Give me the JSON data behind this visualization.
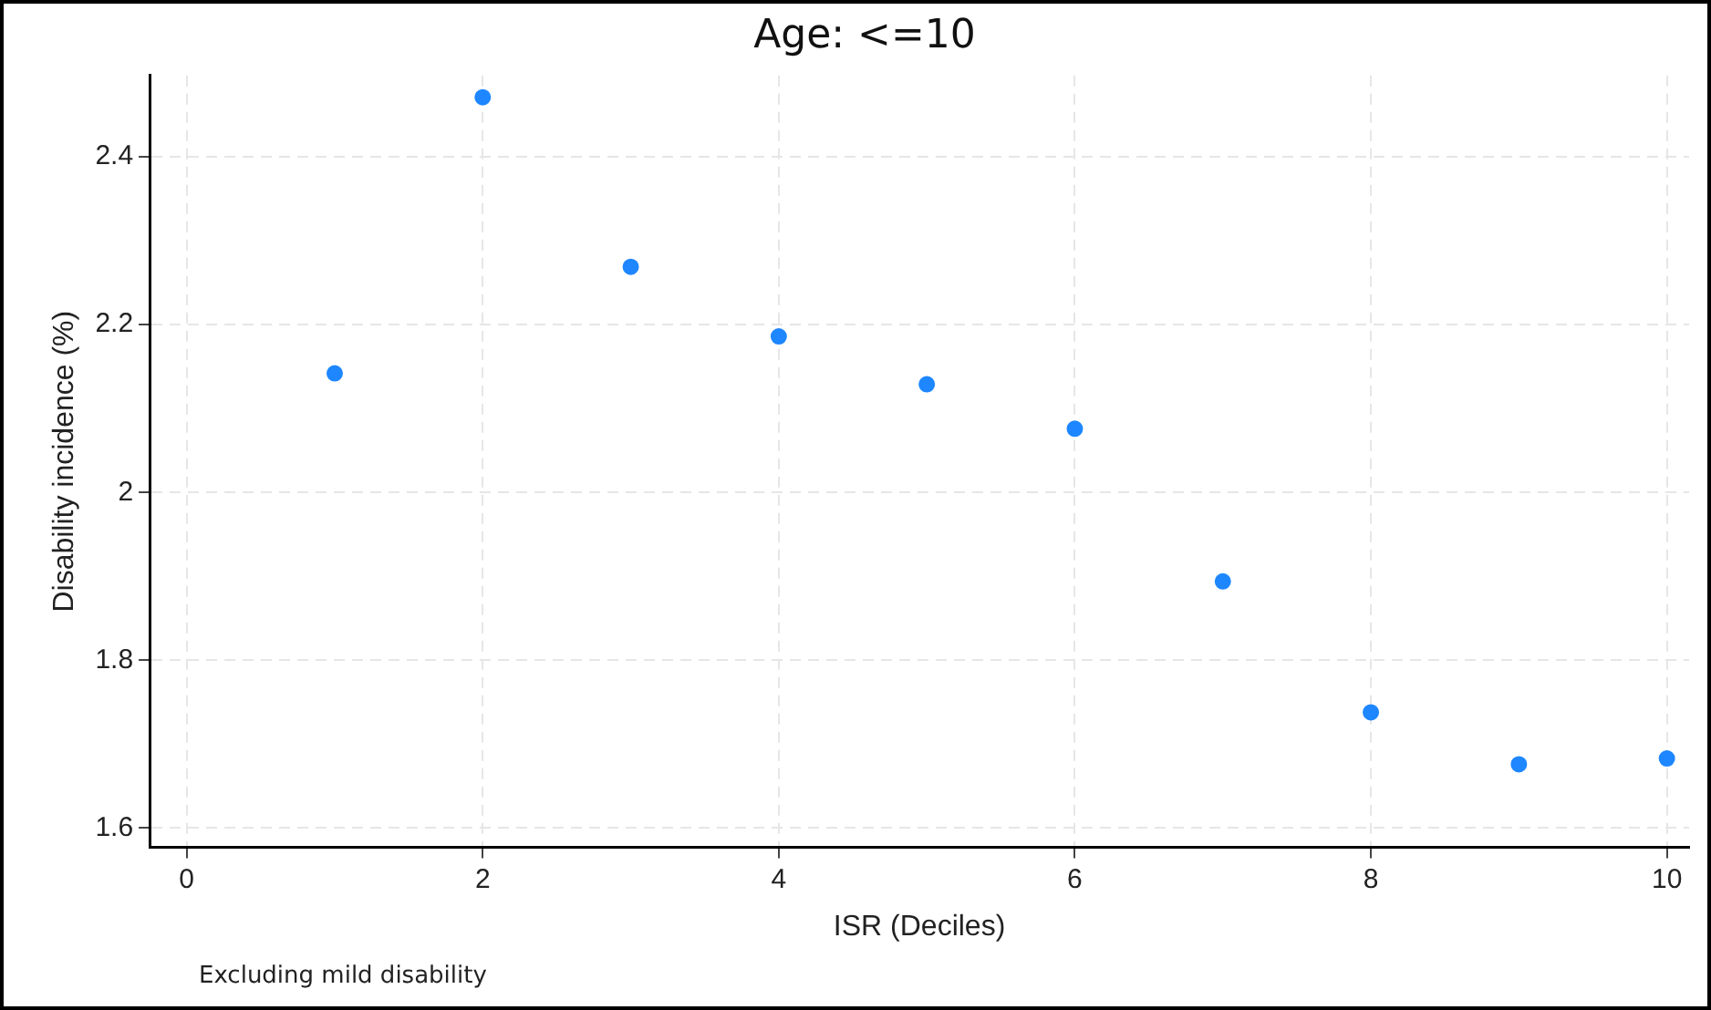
{
  "chart_data": {
    "type": "scatter",
    "title": "Age: <=10",
    "xlabel": "ISR (Deciles)",
    "ylabel": "Disability incidence (%)",
    "annotations": [
      "Excluding mild disability"
    ],
    "x": [
      1,
      2,
      3,
      4,
      5,
      6,
      7,
      8,
      9,
      10
    ],
    "series": [
      {
        "color": "#1e87ff",
        "values": [
          2.142,
          2.471,
          2.269,
          2.186,
          2.129,
          2.076,
          1.894,
          1.738,
          1.676,
          1.683
        ]
      }
    ],
    "xlim": [
      -0.25,
      10.15
    ],
    "xticks": [
      0,
      2,
      4,
      6,
      8,
      10
    ],
    "ylim": [
      1.577,
      2.497
    ],
    "yticks": [
      1.6,
      1.8,
      2,
      2.2,
      2.4
    ],
    "grid": true,
    "legend": false,
    "marker": "circle"
  }
}
